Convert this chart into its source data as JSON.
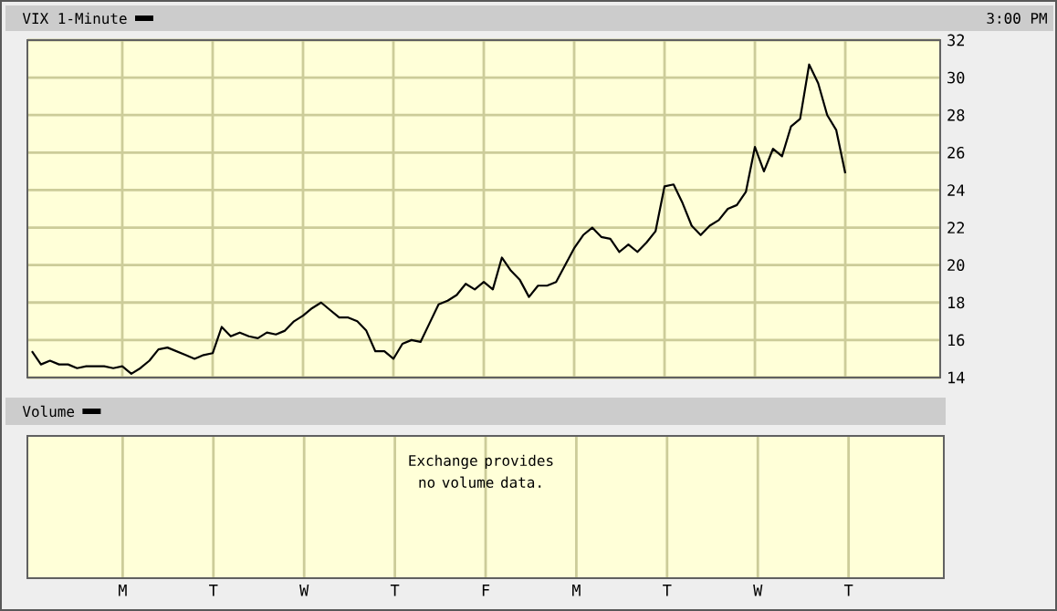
{
  "chart_data": [
    {
      "type": "line",
      "annotations": [
        "3:00 PM"
      ],
      "legend": "top left",
      "grid": true,
      "tick_labels": "y",
      "categories": [
        null,
        null,
        null,
        null,
        null,
        null,
        null,
        null,
        null,
        null,
        "M",
        null,
        null,
        null,
        null,
        null,
        null,
        null,
        null,
        null,
        "T",
        null,
        null,
        null,
        null,
        null,
        null,
        null,
        null,
        null,
        "W",
        null,
        null,
        null,
        null,
        null,
        null,
        null,
        null,
        null,
        "T",
        null,
        null,
        null,
        null,
        null,
        null,
        null,
        null,
        null,
        "F",
        null,
        null,
        null,
        null,
        null,
        null,
        null,
        null,
        null,
        "M",
        null,
        null,
        null,
        null,
        null,
        null,
        null,
        null,
        null,
        "T",
        null,
        null,
        null,
        null,
        null,
        null,
        null,
        null,
        null,
        "W",
        null,
        null,
        null,
        null,
        null,
        null,
        null,
        null,
        null,
        "T",
        null,
        null,
        null,
        null,
        null,
        null,
        null,
        null,
        null,
        null
      ],
      "ylim": [
        14,
        32
      ],
      "yticks": [
        14,
        16,
        18,
        20,
        22,
        24,
        26,
        28,
        30,
        32
      ],
      "series": [
        {
          "name": "VIX 1-Minute",
          "color": "#000000",
          "values": [
            15.4,
            14.7,
            14.9,
            14.7,
            14.7,
            14.5,
            14.6,
            14.6,
            14.6,
            14.5,
            14.6,
            14.2,
            14.5,
            14.9,
            15.5,
            15.6,
            15.4,
            15.2,
            15.0,
            15.2,
            15.3,
            16.7,
            16.2,
            16.4,
            16.2,
            16.1,
            16.4,
            16.3,
            16.5,
            17.0,
            17.3,
            17.7,
            18.0,
            17.6,
            17.2,
            17.2,
            17.0,
            16.5,
            15.4,
            15.4,
            15.0,
            15.8,
            16.0,
            15.9,
            16.9,
            17.9,
            18.1,
            18.4,
            19.0,
            18.7,
            19.1,
            18.7,
            20.4,
            19.7,
            19.2,
            18.3,
            18.9,
            18.9,
            19.1,
            20.0,
            20.9,
            21.6,
            22.0,
            21.5,
            21.4,
            20.7,
            21.1,
            20.7,
            21.2,
            21.8,
            24.2,
            24.3,
            23.3,
            22.1,
            21.6,
            22.1,
            22.4,
            23.0,
            23.2,
            23.9,
            26.3,
            25.0,
            26.2,
            25.8,
            27.4,
            27.8,
            30.7,
            29.7,
            28.0,
            27.2,
            24.9,
            null,
            null,
            null,
            null,
            null,
            null,
            null,
            null,
            null,
            null
          ]
        }
      ]
    },
    {
      "type": "other",
      "title": "Volume",
      "annotations": [
        "Exchange provides no volume data."
      ]
    }
  ]
}
